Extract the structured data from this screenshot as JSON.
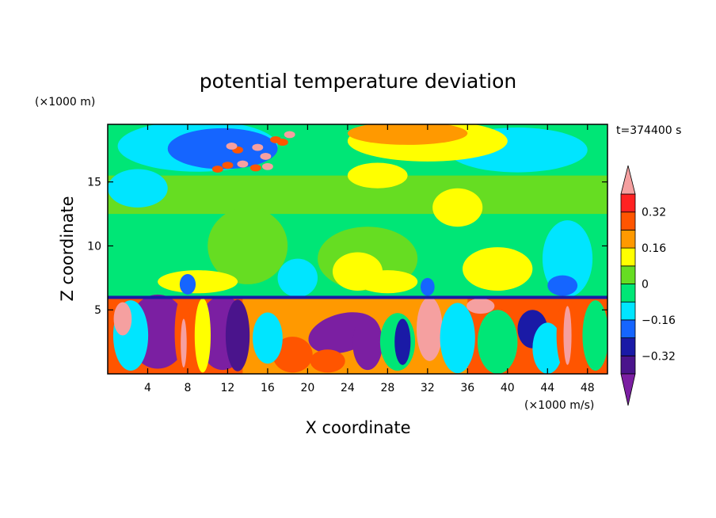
{
  "chart_data": {
    "type": "heatmap",
    "title": "potential temperature deviation",
    "xlabel": "X coordinate",
    "ylabel": "Z coordinate",
    "x_unit": "(×1000 m/s)",
    "y_unit": "(×1000 m)",
    "time_label": "t=374400 s",
    "xlim": [
      0,
      50
    ],
    "ylim": [
      0,
      19.5
    ],
    "x_ticks": [
      4,
      8,
      12,
      16,
      20,
      24,
      28,
      32,
      36,
      40,
      44,
      48
    ],
    "y_ticks": [
      5,
      10,
      15
    ],
    "colorbar": {
      "levels": [
        -0.4,
        -0.32,
        -0.24,
        -0.16,
        -0.08,
        0,
        0.08,
        0.16,
        0.24,
        0.32,
        0.4
      ],
      "labels": [
        "0.32",
        "0.16",
        "0",
        "−0.16",
        "−0.32"
      ],
      "label_values": [
        0.32,
        0.16,
        0,
        -0.16,
        -0.32
      ],
      "colors": [
        "#7b1fa2",
        "#4a148c",
        "#1a1aa6",
        "#1565ff",
        "#00e5ff",
        "#00e676",
        "#66dd22",
        "#ffff00",
        "#ff9900",
        "#ff5500",
        "#ff2222",
        "#f5a0a0"
      ]
    }
  }
}
